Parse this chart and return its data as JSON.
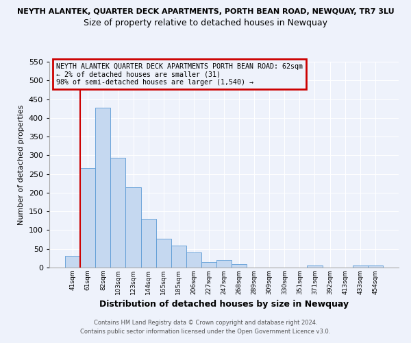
{
  "title_top": "NEYTH ALANTEK, QUARTER DECK APARTMENTS, PORTH BEAN ROAD, NEWQUAY, TR7 3LU",
  "title_sub": "Size of property relative to detached houses in Newquay",
  "xlabel": "Distribution of detached houses by size in Newquay",
  "ylabel": "Number of detached properties",
  "categories": [
    "41sqm",
    "61sqm",
    "82sqm",
    "103sqm",
    "123sqm",
    "144sqm",
    "165sqm",
    "185sqm",
    "206sqm",
    "227sqm",
    "247sqm",
    "268sqm",
    "289sqm",
    "309sqm",
    "330sqm",
    "351sqm",
    "371sqm",
    "392sqm",
    "413sqm",
    "433sqm",
    "454sqm"
  ],
  "values": [
    32,
    265,
    428,
    293,
    215,
    130,
    77,
    59,
    40,
    15,
    20,
    10,
    0,
    0,
    0,
    0,
    5,
    0,
    0,
    5,
    5
  ],
  "bar_color": "#c5d8f0",
  "bar_edge_color": "#5b9bd5",
  "vline_x": 1,
  "vline_color": "#cc0000",
  "ylim": [
    0,
    550
  ],
  "yticks": [
    0,
    50,
    100,
    150,
    200,
    250,
    300,
    350,
    400,
    450,
    500,
    550
  ],
  "annotation_title": "NEYTH ALANTEK QUARTER DECK APARTMENTS PORTH BEAN ROAD: 62sqm",
  "annotation_line2": "← 2% of detached houses are smaller (31)",
  "annotation_line3": "98% of semi-detached houses are larger (1,540) →",
  "annotation_box_color": "#cc0000",
  "footer_line1": "Contains HM Land Registry data © Crown copyright and database right 2024.",
  "footer_line2": "Contains public sector information licensed under the Open Government Licence v3.0.",
  "background_color": "#eef2fb",
  "grid_color": "#ffffff"
}
